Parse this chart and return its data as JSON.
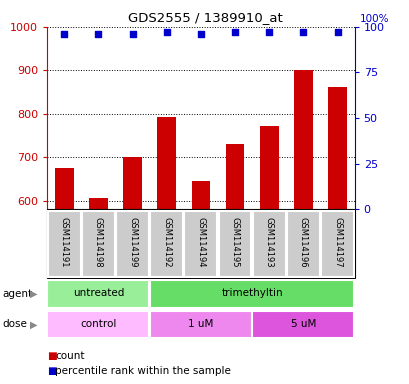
{
  "title": "GDS2555 / 1389910_at",
  "samples": [
    "GSM114191",
    "GSM114198",
    "GSM114199",
    "GSM114192",
    "GSM114194",
    "GSM114195",
    "GSM114193",
    "GSM114196",
    "GSM114197"
  ],
  "counts": [
    675,
    607,
    700,
    792,
    645,
    730,
    772,
    900,
    862
  ],
  "percentile_ranks": [
    96,
    96,
    96,
    97,
    96,
    97,
    97,
    97,
    97
  ],
  "ylim_left": [
    580,
    1000
  ],
  "ylim_right": [
    0,
    100
  ],
  "yticks_left": [
    600,
    700,
    800,
    900,
    1000
  ],
  "yticks_right": [
    0,
    25,
    50,
    75,
    100
  ],
  "bar_color": "#cc0000",
  "dot_color": "#0000cc",
  "bar_width": 0.55,
  "agent_groups": [
    {
      "label": "untreated",
      "start": 0,
      "end": 3,
      "color": "#99ee99"
    },
    {
      "label": "trimethyltin",
      "start": 3,
      "end": 9,
      "color": "#66dd66"
    }
  ],
  "dose_groups": [
    {
      "label": "control",
      "start": 0,
      "end": 3,
      "color": "#ffbbff"
    },
    {
      "label": "1 uM",
      "start": 3,
      "end": 6,
      "color": "#ee88ee"
    },
    {
      "label": "5 uM",
      "start": 6,
      "end": 9,
      "color": "#dd55dd"
    }
  ],
  "left_axis_color": "#cc0000",
  "right_axis_color": "#0000cc",
  "background_color": "#ffffff",
  "sample_box_color": "#cccccc",
  "grid_color": "#000000",
  "right_axis_label": "100%"
}
